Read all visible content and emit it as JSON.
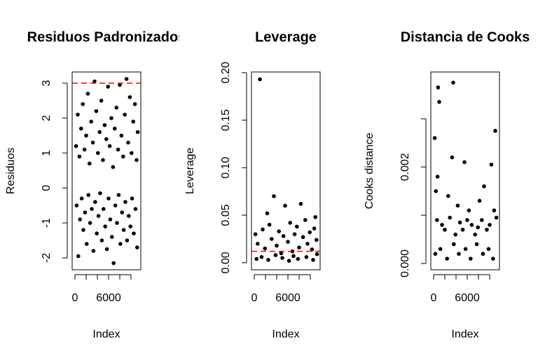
{
  "chart_data": [
    {
      "type": "scatter",
      "title": "Residuos Padronizados",
      "xlabel": "Index",
      "ylabel": "Residuos",
      "color": "#000000",
      "x": [
        200,
        500,
        800,
        1100,
        1400,
        1700,
        2000,
        2300,
        2600,
        2900,
        3200,
        3500,
        3800,
        4100,
        4400,
        4700,
        5000,
        5300,
        5600,
        5900,
        6200,
        6500,
        6800,
        7100,
        7400,
        7700,
        8000,
        8300,
        8600,
        8900,
        9200,
        9500,
        9800,
        10100,
        10400,
        10700,
        11000,
        11200,
        300,
        600,
        900,
        1200,
        1500,
        1800,
        2100,
        2400,
        2700,
        3000,
        3300,
        3600,
        3900,
        4200,
        4500,
        4800,
        5100,
        5400,
        5700,
        6000,
        6300,
        6600,
        6900,
        7200,
        7500,
        7800,
        8100,
        8400,
        8700,
        9000,
        9300,
        9600,
        9900,
        10200,
        10500,
        10800,
        11100
      ],
      "values": [
        1.2,
        2.1,
        0.9,
        1.7,
        2.4,
        1.1,
        1.5,
        2.7,
        0.7,
        1.9,
        1.3,
        3.05,
        2.2,
        1.0,
        1.6,
        2.5,
        0.8,
        1.8,
        1.4,
        2.9,
        1.2,
        2.0,
        0.6,
        1.7,
        2.3,
        1.1,
        2.95,
        1.5,
        0.9,
        2.1,
        3.12,
        1.3,
        2.6,
        1.0,
        1.9,
        2.4,
        0.8,
        1.6,
        -0.5,
        -1.95,
        -0.9,
        -0.3,
        -1.2,
        -0.7,
        -1.6,
        -0.2,
        -1.0,
        -0.6,
        -1.8,
        -0.4,
        -1.3,
        -0.8,
        -0.15,
        -1.5,
        -0.6,
        -1.1,
        -1.75,
        -0.3,
        -0.9,
        -1.4,
        -2.15,
        -0.5,
        -1.0,
        -0.2,
        -1.6,
        -0.7,
        -1.2,
        -0.4,
        -1.5,
        -0.8,
        -1.1,
        -0.3,
        -1.3,
        -0.6,
        -1.7
      ],
      "xlim": [
        -500,
        11750
      ],
      "xticks": [
        0,
        {
          "value": 2000,
          "label": null
        },
        {
          "value": 4000,
          "label": null
        },
        6000,
        {
          "value": 8000,
          "label": null
        },
        {
          "value": 10000,
          "label": null
        }
      ],
      "ylim": [
        -2.34,
        3.32
      ],
      "yticks": [
        -2,
        -1,
        0,
        1,
        2,
        3
      ],
      "hline": {
        "value": 3,
        "color": "#ff0000"
      }
    },
    {
      "type": "scatter",
      "title": "Leverage",
      "xlabel": "Index",
      "ylabel": "Leverage",
      "color": "#000000",
      "x": [
        1000,
        2300,
        3500,
        5500,
        8300,
        9100,
        10900,
        200,
        600,
        1500,
        1900,
        2700,
        3100,
        4000,
        4400,
        4800,
        5200,
        6000,
        6400,
        6800,
        7200,
        7600,
        8000,
        8700,
        9500,
        9900,
        10300,
        10700,
        11100,
        400,
        1300,
        2500,
        3800,
        5000,
        6200,
        7000,
        7800,
        9300,
        10500,
        11200
      ],
      "values": [
        0.193,
        0.052,
        0.07,
        0.06,
        0.062,
        0.045,
        0.048,
        0.03,
        0.02,
        0.035,
        0.015,
        0.04,
        0.025,
        0.018,
        0.033,
        0.01,
        0.028,
        0.022,
        0.042,
        0.012,
        0.03,
        0.038,
        0.016,
        0.027,
        0.02,
        0.032,
        0.014,
        0.036,
        0.024,
        0.004,
        0.006,
        0.003,
        0.008,
        0.005,
        0.002,
        0.007,
        0.004,
        0.006,
        0.003,
        0.009
      ],
      "xlim": [
        -500,
        11750
      ],
      "xticks": [
        0,
        {
          "value": 2000,
          "label": null
        },
        {
          "value": 4000,
          "label": null
        },
        6000,
        {
          "value": 8000,
          "label": null
        },
        {
          "value": 10000,
          "label": null
        }
      ],
      "ylim": [
        -0.0074,
        0.2007
      ],
      "yticks": [
        {
          "value": 0,
          "label": "0.00"
        },
        0.05,
        {
          "value": 0.1,
          "label": "0.10"
        },
        0.15,
        {
          "value": 0.2,
          "label": "0.20"
        }
      ],
      "hline": {
        "value": 0.012,
        "color": "#ff0000"
      }
    },
    {
      "type": "scatter",
      "title": "Distancia de Cooks",
      "xlabel": "Index",
      "ylabel": "Cooks distance",
      "color": "#000000",
      "x": [
        3500,
        800,
        1000,
        200,
        11000,
        3300,
        5500,
        10300,
        700,
        400,
        2600,
        4300,
        6300,
        8200,
        9000,
        600,
        1500,
        2000,
        2900,
        3900,
        4700,
        5200,
        6000,
        6800,
        7400,
        7900,
        8600,
        9500,
        10000,
        10800,
        11200,
        300,
        1200,
        2400,
        3600,
        4500,
        5700,
        6600,
        7700,
        8800,
        9800,
        10600
      ],
      "values": [
        0.00375,
        0.00365,
        0.00335,
        0.0026,
        0.00275,
        0.0022,
        0.0021,
        0.00205,
        0.0018,
        0.0015,
        0.0014,
        0.0012,
        0.0011,
        0.0013,
        0.0016,
        0.0009,
        0.0008,
        0.0007,
        0.00095,
        0.0006,
        0.00085,
        0.0007,
        0.0009,
        0.0008,
        0.0006,
        0.00075,
        0.0009,
        0.0007,
        0.0008,
        0.0011,
        0.00095,
        0.0002,
        0.0003,
        0.0001,
        0.0004,
        0.0002,
        0.0003,
        0.0001,
        0.0004,
        0.0002,
        0.0003,
        0.0001
      ],
      "xlim": [
        -500,
        11750
      ],
      "xticks": [
        0,
        {
          "value": 2000,
          "label": null
        },
        {
          "value": 4000,
          "label": null
        },
        6000,
        {
          "value": 8000,
          "label": null
        },
        {
          "value": 10000,
          "label": null
        }
      ],
      "ylim": [
        -0.00013,
        0.00397
      ],
      "yticks": [
        {
          "value": 0,
          "label": "0.000"
        },
        {
          "value": 0.001,
          "label": null
        },
        0.002,
        {
          "value": 0.003,
          "label": null
        }
      ]
    }
  ]
}
